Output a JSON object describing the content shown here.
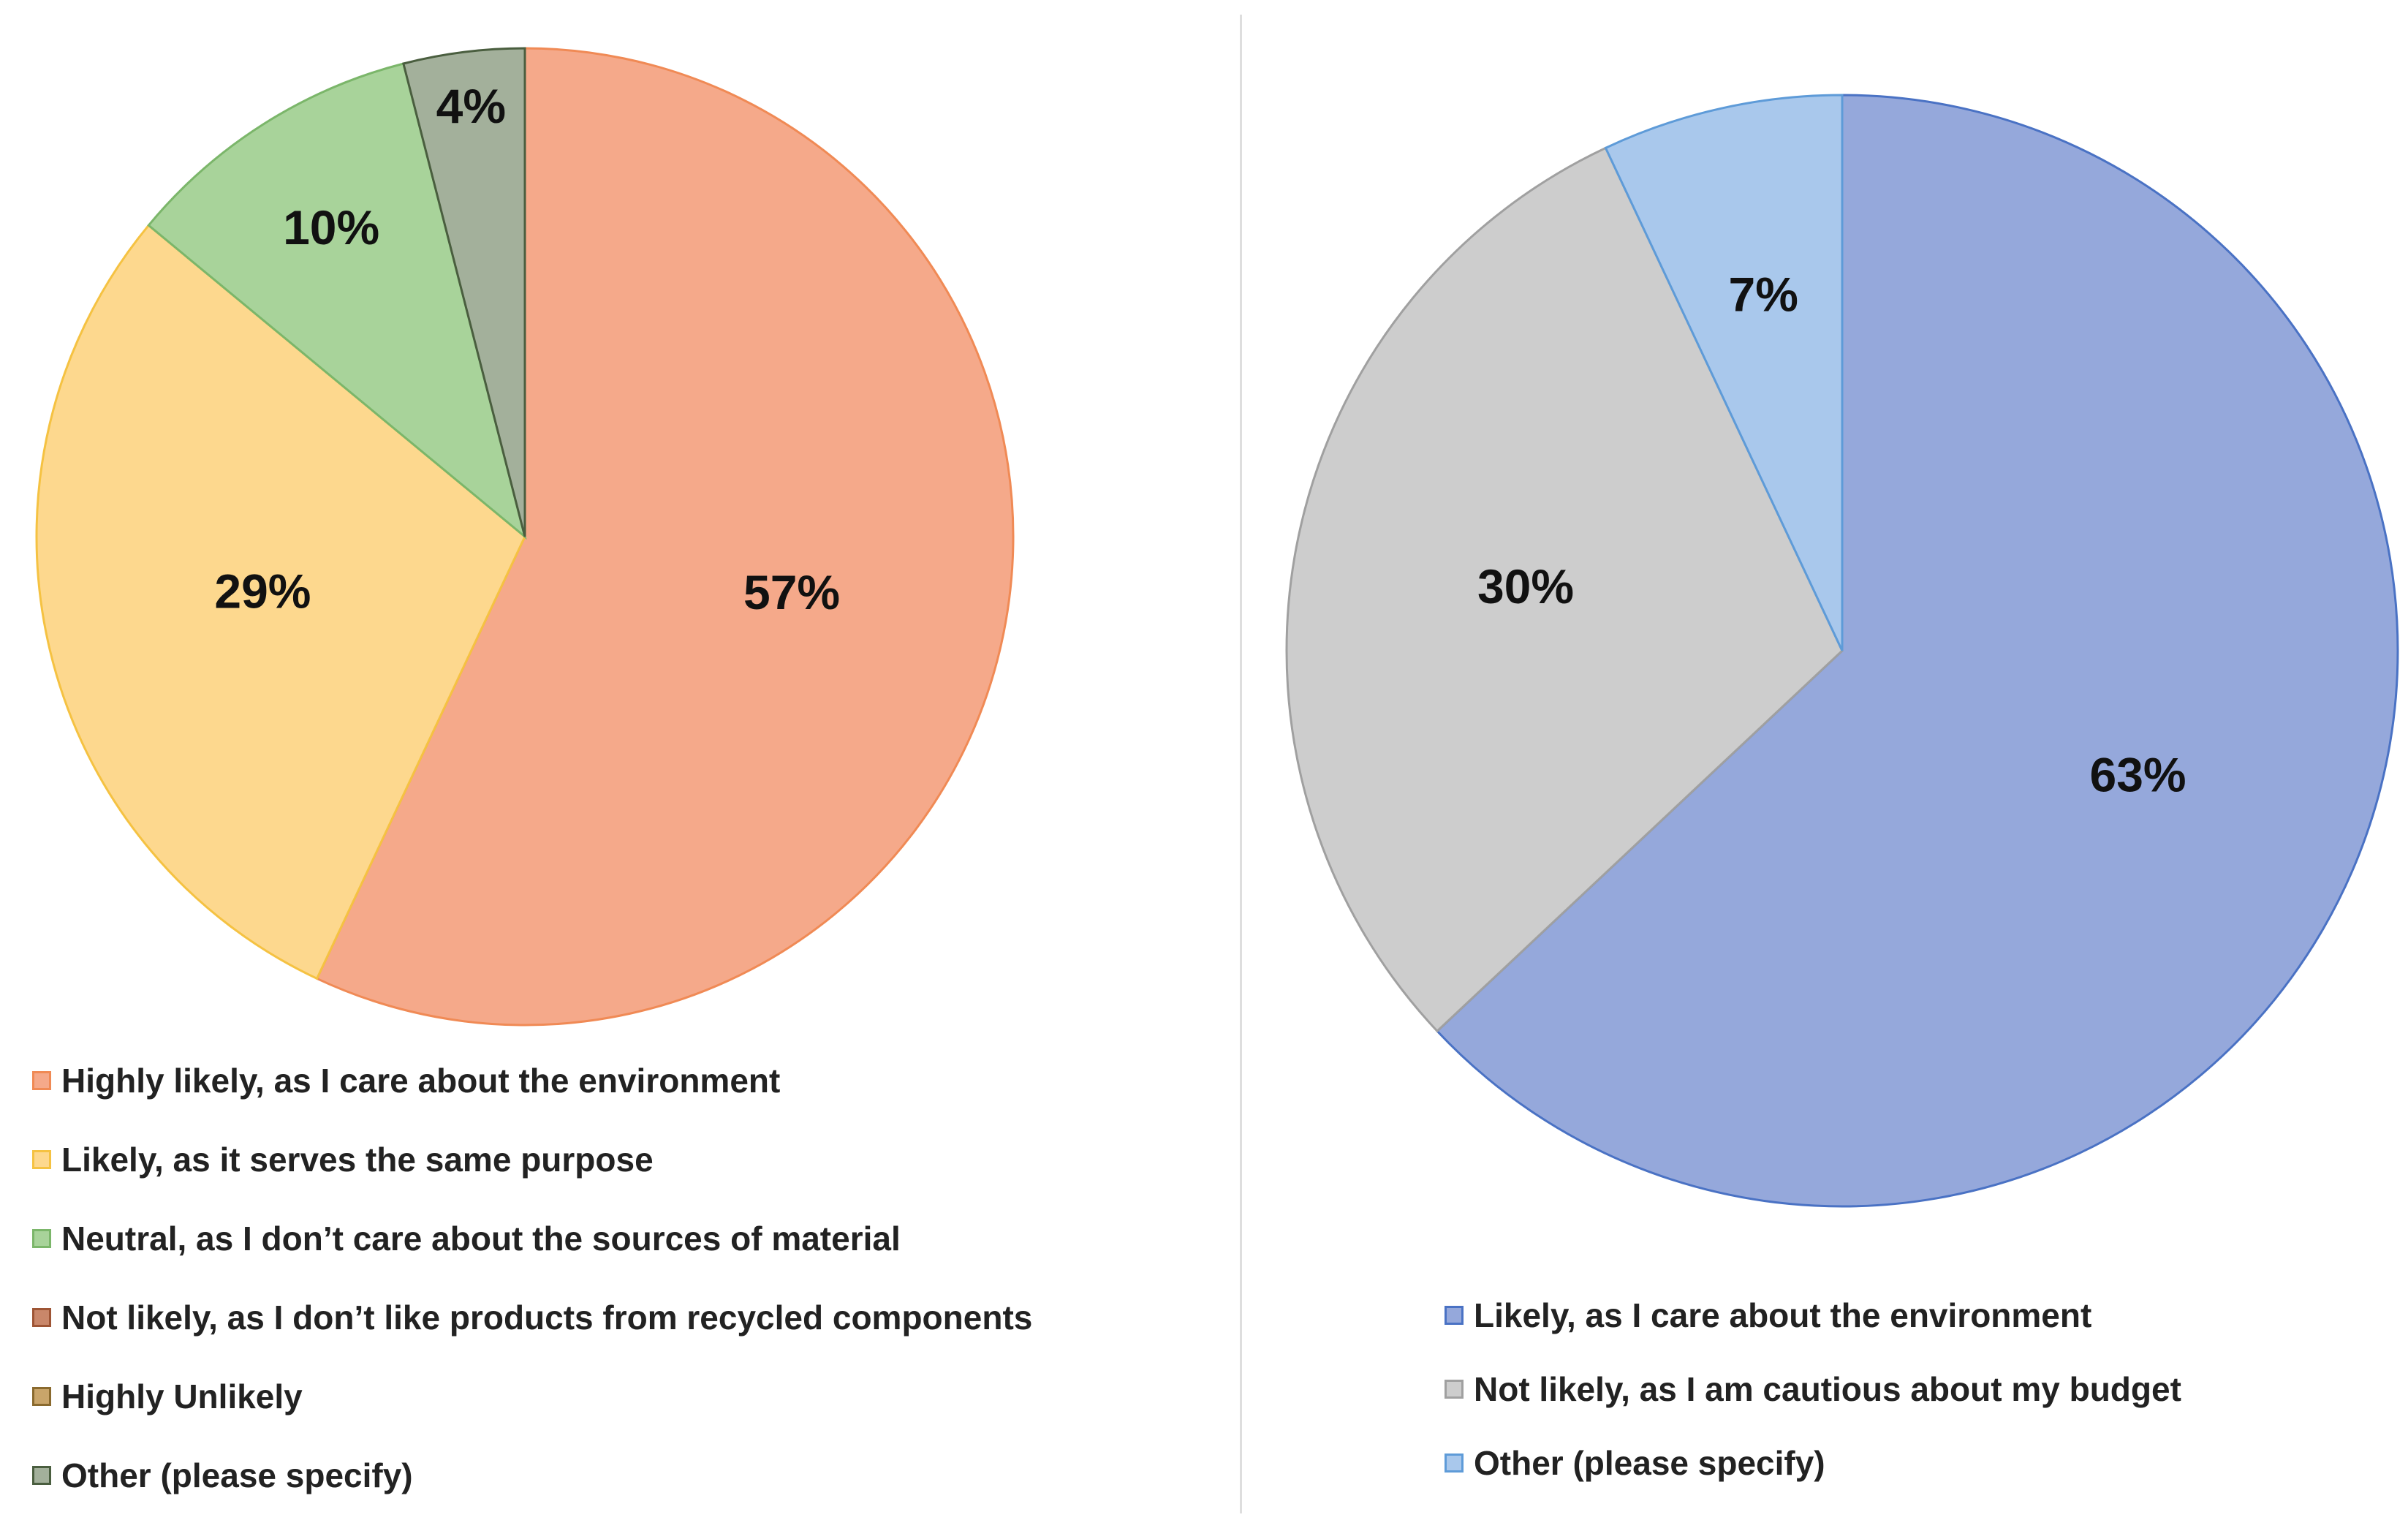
{
  "chart_data": [
    {
      "type": "pie",
      "title": "",
      "series": [
        {
          "name": "Highly likely, as I care about the environment",
          "value": 57,
          "label": "57%",
          "color": "#F5A98A",
          "edge": "#F08A55"
        },
        {
          "name": "Likely, as it serves the same purpose",
          "value": 29,
          "label": "29%",
          "color": "#FDD88E",
          "edge": "#F5C242"
        },
        {
          "name": "Neutral, as I don’t care about the sources of material",
          "value": 10,
          "label": "10%",
          "color": "#A8D39A",
          "edge": "#7BB66A"
        },
        {
          "name": "Not likely, as I don’t like products from recycled components",
          "value": 0,
          "label": "",
          "color": "#C9876A",
          "edge": "#9E5535"
        },
        {
          "name": "Highly Unlikely",
          "value": 0,
          "label": "",
          "color": "#C9A56A",
          "edge": "#8A6A2E"
        },
        {
          "name": "Other (please specify)",
          "value": 4,
          "label": "4%",
          "color": "#A3B09B",
          "edge": "#4A5E3F"
        }
      ],
      "legend_position": "bottom"
    },
    {
      "type": "pie",
      "title": "",
      "series": [
        {
          "name": "Likely, as I care about the environment",
          "value": 63,
          "label": "63%",
          "color": "#95A8DB",
          "edge": "#4A72C4"
        },
        {
          "name": "Not likely, as I am cautious about my budget",
          "value": 30,
          "label": "30%",
          "color": "#CDCDCD",
          "edge": "#A0A0A0"
        },
        {
          "name": "Other (please specify)",
          "value": 7,
          "label": "7%",
          "color": "#A9C8EC",
          "edge": "#5E9BD8"
        }
      ],
      "legend_position": "bottom"
    }
  ]
}
